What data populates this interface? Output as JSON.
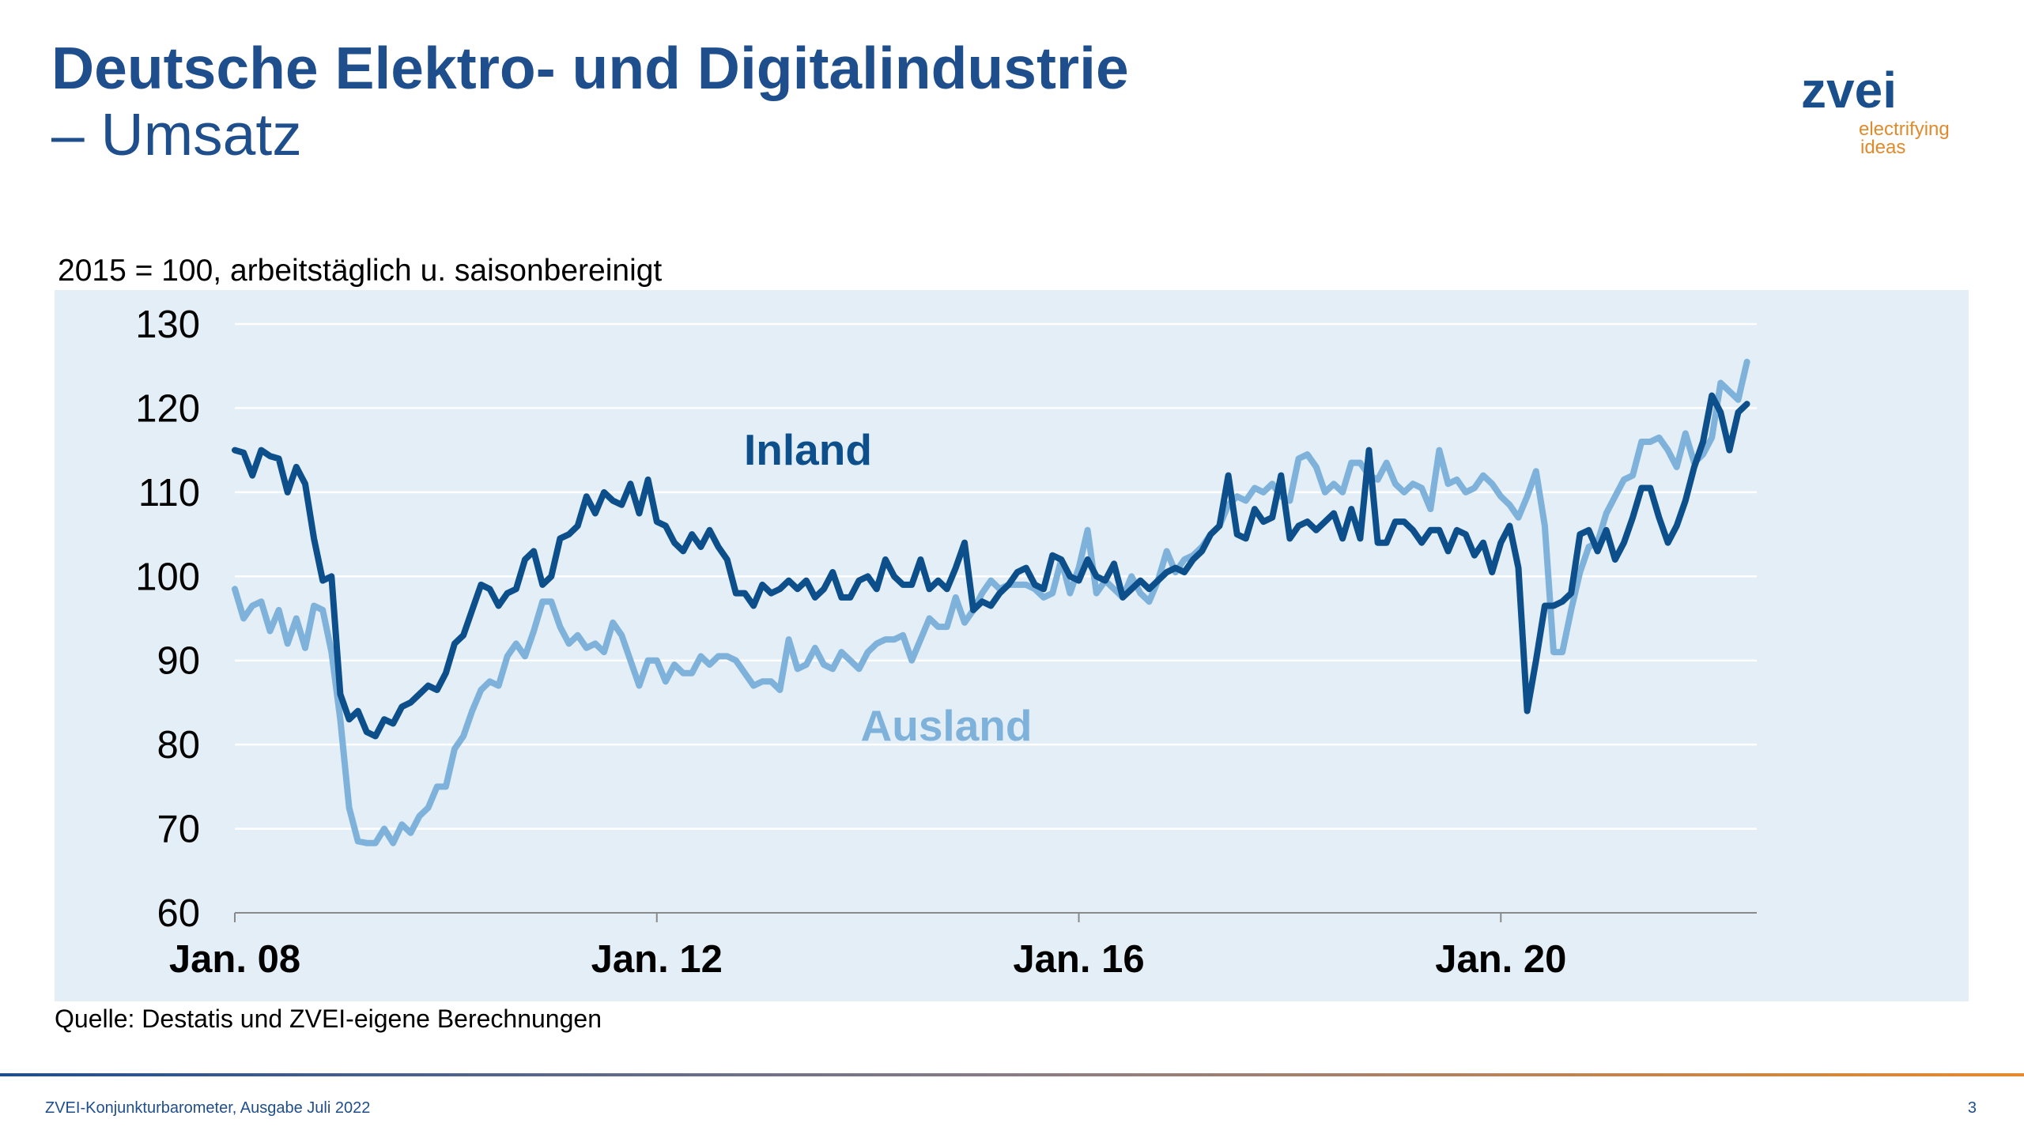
{
  "header": {
    "title": "Deutsche Elektro- und Digitalindustrie",
    "subtitle": "– Umsatz"
  },
  "logo": {
    "name": "zvei",
    "tagline_1": "electrifying",
    "tagline_2": "ideas"
  },
  "chart_data": {
    "type": "line",
    "note": "2015 = 100, arbeitstäglich u. saisonbereinigt",
    "source": "Quelle: Destatis und ZVEI-eigene Berechnungen",
    "categories": [
      "Jan. 08",
      null,
      null,
      null,
      null,
      null,
      null,
      null,
      null,
      null,
      null,
      null,
      null,
      null,
      null,
      null,
      null,
      null,
      null,
      null,
      null,
      null,
      null,
      null,
      null,
      null,
      null,
      null,
      null,
      null,
      null,
      null,
      null,
      null,
      null,
      null,
      null,
      null,
      null,
      null,
      null,
      null,
      null,
      null,
      null,
      null,
      null,
      null,
      "Jan. 12",
      null,
      null,
      null,
      null,
      null,
      null,
      null,
      null,
      null,
      null,
      null,
      null,
      null,
      null,
      null,
      null,
      null,
      null,
      null,
      null,
      null,
      null,
      null,
      null,
      null,
      null,
      null,
      null,
      null,
      null,
      null,
      null,
      null,
      null,
      null,
      null,
      null,
      null,
      null,
      null,
      null,
      null,
      null,
      null,
      null,
      null,
      null,
      "Jan. 16",
      null,
      null,
      null,
      null,
      null,
      null,
      null,
      null,
      null,
      null,
      null,
      null,
      null,
      null,
      null,
      null,
      null,
      null,
      null,
      null,
      null,
      null,
      null,
      null,
      null,
      null,
      null,
      null,
      null,
      null,
      null,
      null,
      null,
      null,
      null,
      null,
      null,
      null,
      null,
      null,
      null,
      null,
      null,
      null,
      null,
      null,
      null,
      "Jan. 20",
      null,
      null,
      null,
      null,
      null,
      null,
      null,
      null,
      null,
      null,
      null,
      null,
      null,
      null,
      null,
      null,
      null,
      null,
      null,
      null,
      null,
      null,
      null,
      null,
      null,
      null,
      null,
      null
    ],
    "series": [
      {
        "name": "Inland",
        "color": "#0d4f8b",
        "values": [
          115,
          114.7,
          112,
          115,
          114.3,
          114,
          110,
          113,
          111,
          104.5,
          99.5,
          100,
          86,
          83,
          84,
          81.5,
          81,
          83,
          82.5,
          84.5,
          85,
          86,
          87,
          86.5,
          88.5,
          92,
          93,
          96,
          99,
          98.5,
          96.5,
          98,
          98.5,
          102,
          103,
          99,
          100,
          104.5,
          105,
          106,
          109.5,
          107.5,
          110,
          109,
          108.5,
          111,
          107.5,
          111.5,
          106.5,
          106,
          104,
          103,
          105,
          103.5,
          105.5,
          103.5,
          102,
          98,
          98,
          96.5,
          99,
          98,
          98.5,
          99.5,
          98.5,
          99.5,
          97.5,
          98.5,
          100.5,
          97.5,
          97.5,
          99.5,
          100,
          98.5,
          102,
          100,
          99,
          99,
          102,
          98.5,
          99.5,
          98.5,
          101,
          104,
          96,
          97,
          96.5,
          98,
          99,
          100.5,
          101,
          99,
          98.5,
          102.5,
          102,
          100,
          99.5,
          102,
          100,
          99.5,
          101.5,
          97.5,
          98.5,
          99.5,
          98.5,
          99.5,
          100.5,
          101,
          100.5,
          102,
          103,
          105,
          106,
          112,
          105,
          104.5,
          108,
          106.5,
          107,
          112,
          104.5,
          106,
          106.5,
          105.5,
          106.5,
          107.5,
          104.5,
          108,
          104.5,
          115,
          104,
          104,
          106.5,
          106.5,
          105.5,
          104,
          105.5,
          105.5,
          103,
          105.5,
          105,
          102.5,
          104,
          100.5,
          104,
          106,
          101,
          84,
          90,
          96.5,
          96.5,
          97,
          98,
          105,
          105.5,
          103,
          105.5,
          102,
          104,
          107,
          110.5,
          110.5,
          107,
          104,
          106,
          109,
          113,
          116,
          121.5,
          119.5,
          115,
          119.5,
          120.5
        ]
      },
      {
        "name": "Ausland",
        "color": "#7fb2da",
        "values": [
          98.5,
          95,
          96.5,
          97,
          93.5,
          96,
          92,
          95,
          91.5,
          96.5,
          96,
          91,
          83,
          72.5,
          68.5,
          68.3,
          68.3,
          70,
          68.3,
          70.5,
          69.5,
          71.5,
          72.5,
          75,
          75,
          79.5,
          81,
          84,
          86.5,
          87.5,
          87,
          90.5,
          92,
          90.5,
          93.5,
          97,
          97,
          94,
          92,
          93,
          91.5,
          92,
          91,
          94.5,
          93,
          90,
          87,
          90,
          90,
          87.5,
          89.5,
          88.5,
          88.5,
          90.5,
          89.5,
          90.5,
          90.5,
          90,
          88.5,
          87,
          87.5,
          87.5,
          86.5,
          92.5,
          89,
          89.5,
          91.5,
          89.5,
          89,
          91,
          90,
          89,
          91,
          92,
          92.5,
          92.5,
          93,
          90,
          92.5,
          95,
          94,
          94,
          97.5,
          94.5,
          96,
          98,
          99.5,
          98.5,
          99,
          99,
          99,
          98.5,
          97.5,
          98,
          102,
          98,
          101,
          105.5,
          98,
          99.5,
          98.5,
          97.5,
          100,
          98,
          97,
          99.5,
          103,
          100.5,
          102,
          102.5,
          103.5,
          105,
          106,
          108.5,
          109.5,
          109,
          110.5,
          110,
          111,
          109.5,
          109,
          114,
          114.5,
          113,
          110,
          111,
          110,
          113.5,
          113.5,
          112,
          111.5,
          113.5,
          111,
          110,
          111,
          110.5,
          108,
          115,
          111,
          111.5,
          110,
          110.5,
          112,
          111,
          109.5,
          108.5,
          107,
          109.5,
          112.5,
          106,
          91,
          91,
          96,
          100.5,
          103.5,
          104,
          107.5,
          109.5,
          111.5,
          112,
          116,
          116,
          116.5,
          115,
          113,
          117,
          113.5,
          114.5,
          116.5,
          123,
          122,
          121,
          125.5
        ]
      }
    ],
    "ylim": [
      60,
      130
    ],
    "yticks": [
      60,
      70,
      80,
      90,
      100,
      110,
      120,
      130
    ],
    "grid": true
  },
  "footer": {
    "text": "ZVEI-Konjunkturbarometer, Ausgabe Juli 2022",
    "page": "3"
  }
}
